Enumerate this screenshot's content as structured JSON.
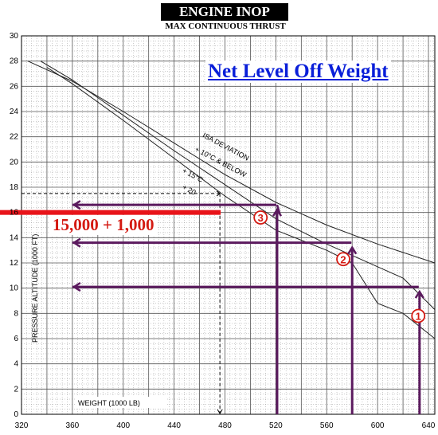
{
  "chart_data": {
    "type": "line",
    "title": "ENGINE INOP",
    "subtitle": "MAX CONTINUOUS THRUST",
    "annotation_headline": "Net Level Off Weight",
    "annotation_red": "15,000 + 1,000",
    "xlabel": "WEIGHT    (1000 LB)",
    "ylabel": "PRESSURE  ALTITUDE   (1000  FT)",
    "xlim": [
      320,
      645
    ],
    "ylim": [
      0,
      30
    ],
    "x_ticks": [
      "320",
      "360",
      "400",
      "440",
      "480",
      "520",
      "560",
      "600",
      "640"
    ],
    "y_ticks": [
      "0",
      "2",
      "4",
      "6",
      "8",
      "10",
      "12",
      "14",
      "16",
      "18",
      "20",
      "22",
      "24",
      "26",
      "28",
      "30"
    ],
    "grid": true,
    "isa_labels": [
      "ISA DEVIATION",
      "+ 10°C & BELOW",
      "+ 15°C",
      "+ 20"
    ],
    "series": [
      {
        "name": "+ 10°C & BELOW",
        "x": [
          325,
          360,
          400,
          440,
          480,
          520,
          560,
          600,
          645
        ],
        "y": [
          28.0,
          26.4,
          24.0,
          21.5,
          19.0,
          16.8,
          15.0,
          13.5,
          12.0
        ]
      },
      {
        "name": "+ 15°C",
        "x": [
          335,
          360,
          400,
          440,
          480,
          520,
          560,
          600,
          620,
          645
        ],
        "y": [
          28.0,
          26.5,
          23.7,
          20.9,
          18.2,
          15.5,
          13.5,
          11.7,
          10.8,
          8.3
        ]
      },
      {
        "name": "+ 20",
        "x": [
          340,
          360,
          400,
          440,
          480,
          520,
          560,
          580,
          600,
          620,
          645
        ],
        "y": [
          27.5,
          26.2,
          23.3,
          20.3,
          17.3,
          14.6,
          13.0,
          12.0,
          8.8,
          8.0,
          6.0
        ]
      }
    ],
    "markers": [
      {
        "label": "1",
        "from_weight": 633,
        "level_altitude": 10.1,
        "to_weight": 360
      },
      {
        "label": "2",
        "from_weight": 580,
        "level_altitude": 13.6,
        "to_weight": 360
      },
      {
        "label": "3",
        "from_weight": 521,
        "level_altitude": 16.6,
        "to_weight": 360
      }
    ],
    "dashed_guide": {
      "weight": 476,
      "altitude": 17.5
    },
    "red_bar_altitude": 16.0
  }
}
